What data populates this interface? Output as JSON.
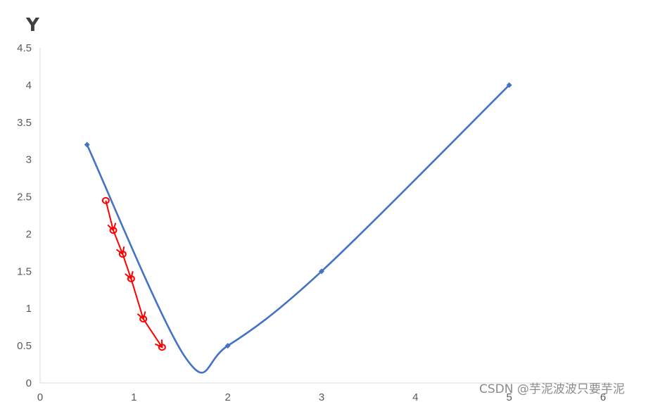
{
  "chart_data": {
    "type": "line",
    "title": "",
    "ylabel": "Y",
    "xlabel": "",
    "xlim": [
      0,
      6
    ],
    "ylim": [
      0,
      4.5
    ],
    "x_ticks": [
      "0",
      "1",
      "2",
      "3",
      "4",
      "5",
      "6"
    ],
    "y_ticks": [
      "0",
      "0.5",
      "1",
      "1.5",
      "2",
      "2.5",
      "3",
      "3.5",
      "4",
      "4.5"
    ],
    "grid": false,
    "smooth": true,
    "series": [
      {
        "color": "#4472c4",
        "marker": "diamond",
        "x": [
          0.5,
          2,
          3,
          5
        ],
        "y": [
          3.2,
          0.5,
          1.5,
          4
        ],
        "curve_minimum": {
          "x": 1.55,
          "y": 0.34
        }
      }
    ],
    "annotations": {
      "type": "gradient-descent-steps",
      "color": "#ff0000",
      "marker": "circle",
      "points": [
        {
          "x": 0.7,
          "y": 2.45
        },
        {
          "x": 0.78,
          "y": 2.05
        },
        {
          "x": 0.88,
          "y": 1.73
        },
        {
          "x": 0.97,
          "y": 1.4
        },
        {
          "x": 1.1,
          "y": 0.86
        },
        {
          "x": 1.3,
          "y": 0.48
        }
      ]
    }
  },
  "watermark": "CSDN @芋泥波波只要芋泥"
}
